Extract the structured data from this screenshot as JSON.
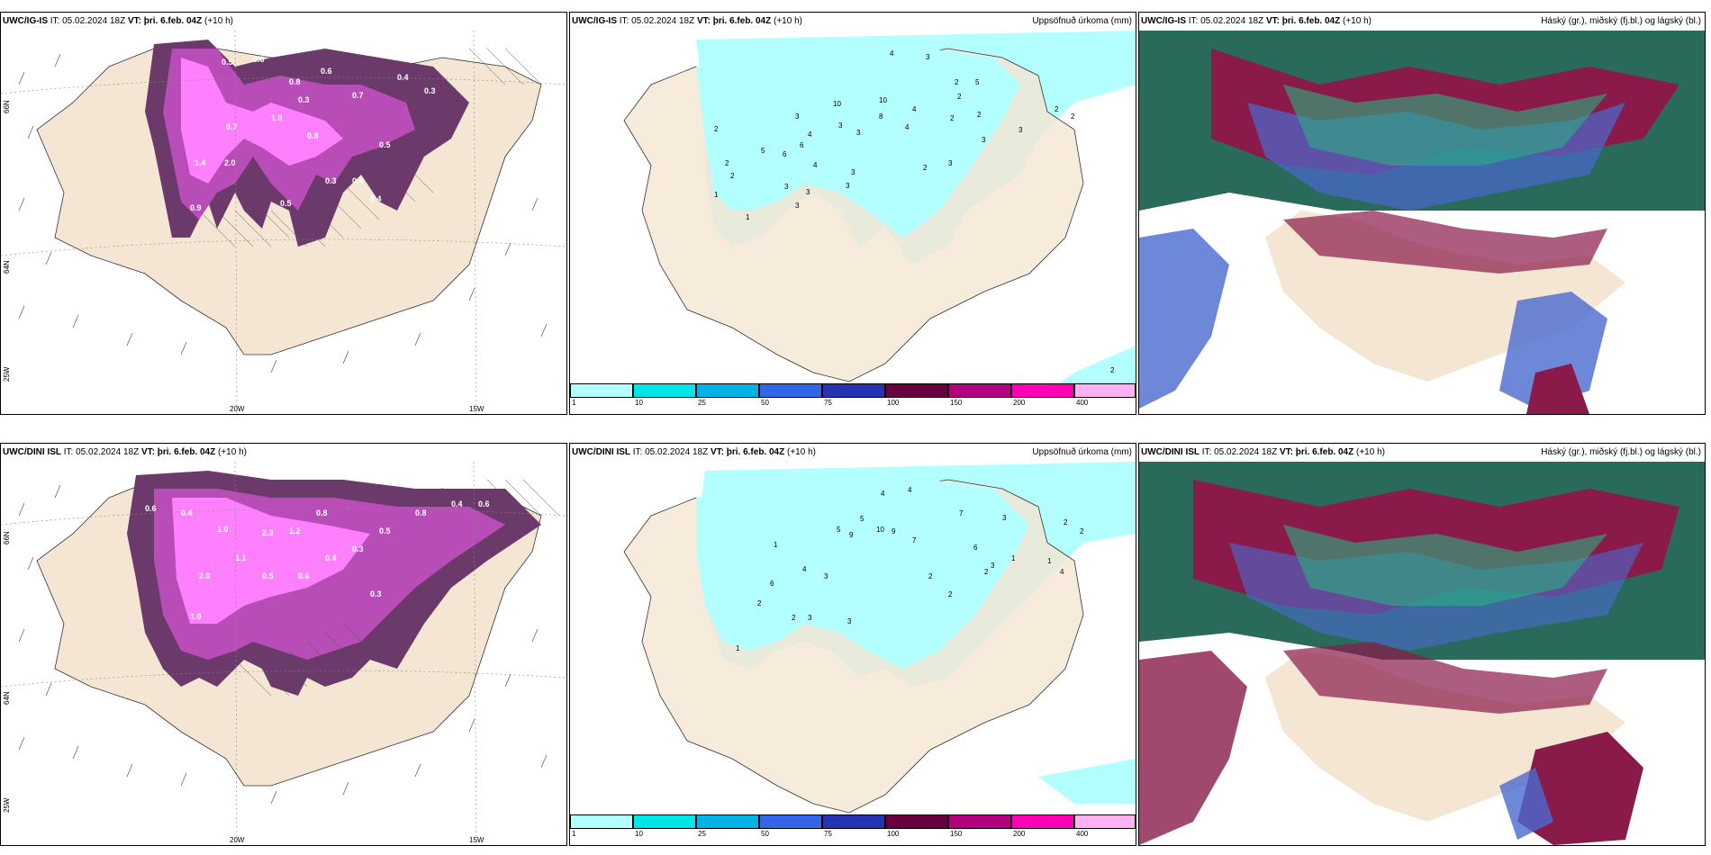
{
  "panels": {
    "top_left": {
      "model": "UWC/IG-IS",
      "it": "IT: 05.02.2024 18Z",
      "vt_label": "VT:",
      "vt_value": "þri. 6.feb. 04Z",
      "lead": "(+10 h)"
    },
    "top_mid": {
      "model": "UWC/IG-IS",
      "it": "IT: 05.02.2024 18Z",
      "vt_label": "VT:",
      "vt_value": "þri. 6.feb. 04Z",
      "lead": "(+10 h)",
      "right_title": "Uppsöfnuð úrkoma (mm)"
    },
    "top_right": {
      "model": "UWC/IG-IS",
      "it": "IT: 05.02.2024 18Z",
      "vt_label": "VT:",
      "vt_value": "þri. 6.feb. 04Z",
      "lead": "(+10 h)",
      "right_title": "Háský (gr.), miðský (fj.bl.) og lágský (bl.)"
    },
    "bottom_left": {
      "model": "UWC/DINI ISL",
      "it": "IT: 05.02.2024 18Z",
      "vt_label": "VT:",
      "vt_value": "þri. 6.feb. 04Z",
      "lead": "(+10 h)"
    },
    "bottom_mid": {
      "model": "UWC/DINI ISL",
      "it": "IT: 05.02.2024 18Z",
      "vt_label": "VT:",
      "vt_value": "þri. 6.feb. 04Z",
      "lead": "(+10 h)",
      "right_title": "Uppsöfnuð úrkoma (mm)"
    },
    "bottom_right": {
      "model": "UWC/DINI ISL",
      "it": "IT: 05.02.2024 18Z",
      "vt_label": "VT:",
      "vt_value": "þri. 6.feb. 04Z",
      "lead": "(+10 h)",
      "right_title": "Háský (gr.), miðský (fj.bl.) og lágský (bl.)"
    }
  },
  "graticule": {
    "lat_labels": [
      "66N",
      "64N"
    ],
    "lon_labels": [
      "20W",
      "15W"
    ],
    "left_edge_label": "25W"
  },
  "legend": {
    "ticks": [
      "1",
      "10",
      "25",
      "50",
      "75",
      "100",
      "150",
      "200",
      "400"
    ],
    "colors": [
      "#b3ffff",
      "#00e6e6",
      "#00b3e6",
      "#3366e6",
      "#2633b3",
      "#66003f",
      "#b3007f",
      "#ff00b3",
      "#ffb3f0"
    ]
  },
  "colors": {
    "land": "#f5e6d3",
    "snow_light": "#6b3a6b",
    "snow_mid": "#b84db8",
    "snow_bright": "#ff80ff",
    "precip_light": "#b3ffff",
    "high_cloud": "#2a7a5a",
    "mid_cloud": "#8a1a4a",
    "low_cloud": "#4a6ad0"
  },
  "precip_values_top": [
    "4",
    "3",
    "3",
    "5",
    "10",
    "10",
    "8",
    "4",
    "4",
    "2",
    "2",
    "2",
    "5",
    "6",
    "4",
    "3",
    "3",
    "2",
    "2",
    "6",
    "4",
    "3",
    "2",
    "3",
    "2",
    "2",
    "1",
    "1",
    "3",
    "3",
    "3",
    "3",
    "3",
    "2",
    "2",
    "3",
    "2"
  ],
  "precip_values_bottom": [
    "4",
    "4",
    "7",
    "5",
    "5",
    "9",
    "10",
    "9",
    "7",
    "6",
    "3",
    "3",
    "2",
    "2",
    "6",
    "4",
    "3",
    "2",
    "2",
    "1",
    "1",
    "3",
    "3",
    "2",
    "2",
    "1",
    "4",
    "1",
    "2"
  ],
  "snow_values_top": [
    "0.5",
    "0.6",
    "0.8",
    "0.3",
    "0.6",
    "0.7",
    "0.4",
    "0.3",
    "0.7",
    "1.0",
    "1.4",
    "2.0",
    "0.9",
    "0.5",
    "0.3",
    "0.4",
    "0.5",
    "0.4",
    "0.8"
  ],
  "snow_values_bottom": [
    "0.6",
    "0.4",
    "1.0",
    "2.3",
    "1.2",
    "0.8",
    "2.0",
    "1.1",
    "0.5",
    "0.6",
    "0.4",
    "0.3",
    "0.5",
    "0.8",
    "0.4",
    "1.0",
    "0.3",
    "0.6"
  ]
}
